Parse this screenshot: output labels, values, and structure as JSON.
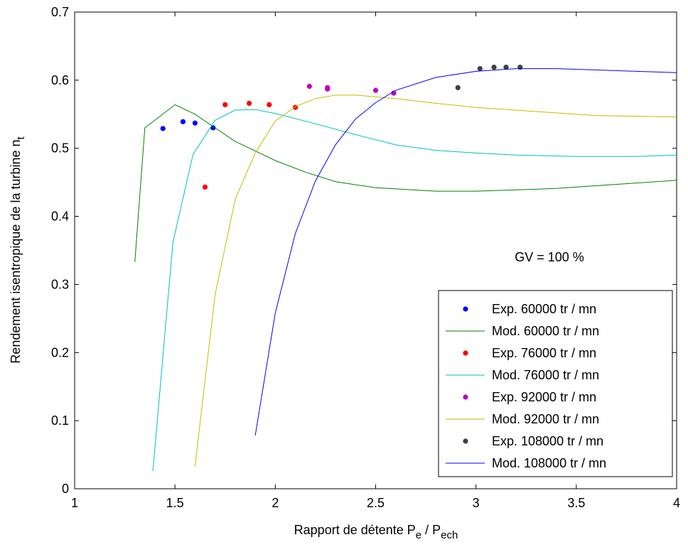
{
  "chart_data": {
    "type": "line",
    "xlabel": {
      "base": "Rapport de détente P",
      "sub1": "e",
      "mid": " / P",
      "sub2": "ech"
    },
    "ylabel": {
      "base": "Rendement isentropique de la turbine n",
      "sub": "t"
    },
    "xlim": [
      1,
      4
    ],
    "ylim": [
      0,
      0.7
    ],
    "xticks": [
      "1",
      "1.5",
      "2",
      "2.5",
      "3",
      "3.5",
      "4"
    ],
    "yticks": [
      "0",
      "0.1",
      "0.2",
      "0.3",
      "0.4",
      "0.5",
      "0.6",
      "0.7"
    ],
    "annotation": "GV = 100 %",
    "legend_position": "lower-right",
    "grid": false,
    "series": [
      {
        "name": "Exp. 60000 tr / mn",
        "kind": "scatter",
        "color": "#0000ff",
        "points": [
          [
            1.44,
            0.529
          ],
          [
            1.54,
            0.539
          ],
          [
            1.6,
            0.537
          ],
          [
            1.69,
            0.53
          ]
        ]
      },
      {
        "name": "Mod. 60000 tr / mn",
        "kind": "line",
        "color": "#008000",
        "points": [
          [
            1.3,
            0.333
          ],
          [
            1.35,
            0.53
          ],
          [
            1.5,
            0.564
          ],
          [
            1.6,
            0.55
          ],
          [
            1.7,
            0.53
          ],
          [
            1.8,
            0.51
          ],
          [
            2.0,
            0.482
          ],
          [
            2.15,
            0.465
          ],
          [
            2.3,
            0.451
          ],
          [
            2.5,
            0.442
          ],
          [
            2.8,
            0.437
          ],
          [
            3.0,
            0.437
          ],
          [
            3.2,
            0.439
          ],
          [
            3.4,
            0.441
          ],
          [
            3.6,
            0.445
          ],
          [
            3.8,
            0.449
          ],
          [
            4.0,
            0.453
          ]
        ]
      },
      {
        "name": "Exp. 76000 tr / mn",
        "kind": "scatter",
        "color": "#ff0000",
        "points": [
          [
            1.65,
            0.443
          ],
          [
            1.75,
            0.564
          ],
          [
            1.87,
            0.566
          ],
          [
            1.97,
            0.564
          ],
          [
            2.1,
            0.56
          ]
        ]
      },
      {
        "name": "Mod. 76000 tr / mn",
        "kind": "line",
        "color": "#00bfbf",
        "points": [
          [
            1.39,
            0.026
          ],
          [
            1.49,
            0.362
          ],
          [
            1.59,
            0.491
          ],
          [
            1.7,
            0.541
          ],
          [
            1.8,
            0.556
          ],
          [
            1.9,
            0.557
          ],
          [
            2.0,
            0.551
          ],
          [
            2.2,
            0.536
          ],
          [
            2.4,
            0.52
          ],
          [
            2.6,
            0.505
          ],
          [
            2.8,
            0.497
          ],
          [
            3.0,
            0.493
          ],
          [
            3.2,
            0.49
          ],
          [
            3.5,
            0.488
          ],
          [
            3.8,
            0.488
          ],
          [
            4.0,
            0.49
          ]
        ]
      },
      {
        "name": "Exp. 92000 tr / mn",
        "kind": "scatter",
        "color": "#bf00bf",
        "points": [
          [
            2.17,
            0.591
          ],
          [
            2.26,
            0.589
          ],
          [
            2.26,
            0.587
          ],
          [
            2.5,
            0.585
          ],
          [
            2.59,
            0.581
          ]
        ]
      },
      {
        "name": "Mod. 92000 tr / mn",
        "kind": "line",
        "color": "#bfbf00",
        "points": [
          [
            1.6,
            0.033
          ],
          [
            1.7,
            0.285
          ],
          [
            1.8,
            0.425
          ],
          [
            1.9,
            0.493
          ],
          [
            2.0,
            0.54
          ],
          [
            2.1,
            0.561
          ],
          [
            2.2,
            0.573
          ],
          [
            2.3,
            0.578
          ],
          [
            2.4,
            0.578
          ],
          [
            2.6,
            0.573
          ],
          [
            2.8,
            0.566
          ],
          [
            3.0,
            0.56
          ],
          [
            3.3,
            0.554
          ],
          [
            3.6,
            0.548
          ],
          [
            4.0,
            0.546
          ]
        ]
      },
      {
        "name": "Exp. 108000 tr / mn",
        "kind": "scatter",
        "color": "#404040",
        "points": [
          [
            2.91,
            0.589
          ],
          [
            3.02,
            0.617
          ],
          [
            3.09,
            0.619
          ],
          [
            3.15,
            0.619
          ],
          [
            3.22,
            0.619
          ]
        ]
      },
      {
        "name": "Mod. 108000 tr / mn",
        "kind": "line",
        "color": "#0000ff",
        "points": [
          [
            1.9,
            0.078
          ],
          [
            2.0,
            0.258
          ],
          [
            2.1,
            0.375
          ],
          [
            2.2,
            0.452
          ],
          [
            2.3,
            0.505
          ],
          [
            2.4,
            0.543
          ],
          [
            2.5,
            0.567
          ],
          [
            2.6,
            0.585
          ],
          [
            2.8,
            0.604
          ],
          [
            3.0,
            0.613
          ],
          [
            3.2,
            0.617
          ],
          [
            3.4,
            0.617
          ],
          [
            3.6,
            0.615
          ],
          [
            3.8,
            0.613
          ],
          [
            4.0,
            0.611
          ]
        ]
      }
    ]
  }
}
